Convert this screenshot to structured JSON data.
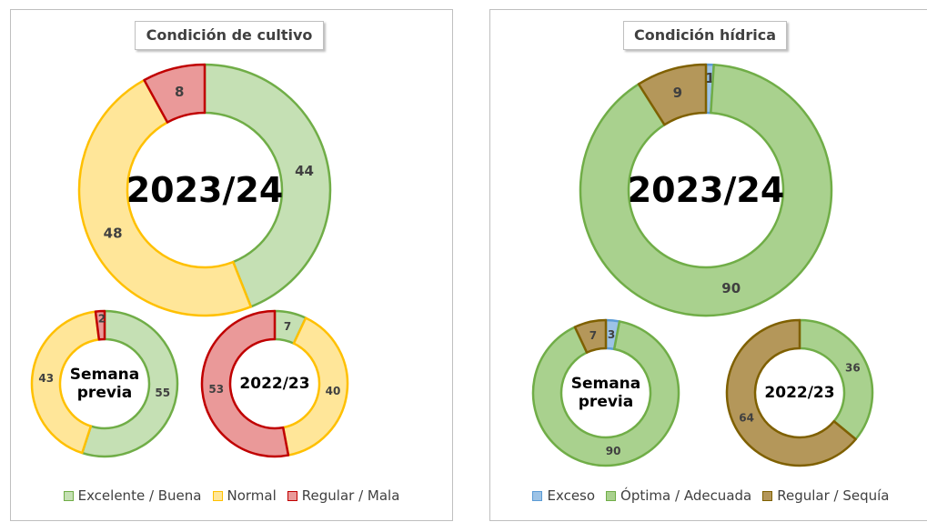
{
  "panels": [
    {
      "title": "Condición  de cultivo",
      "legend": [
        {
          "label": "Excelente / Buena",
          "fill": "#c5e0b4",
          "stroke": "#70ad47"
        },
        {
          "label": "Normal",
          "fill": "#ffe699",
          "stroke": "#ffc000"
        },
        {
          "label": "Regular / Mala",
          "fill": "#ea9999",
          "stroke": "#c00000"
        }
      ]
    },
    {
      "title": "Condición  hídrica",
      "legend": [
        {
          "label": "Exceso",
          "fill": "#9dc3e6",
          "stroke": "#5b9bd5"
        },
        {
          "label": "Óptima / Adecuada",
          "fill": "#a9d18e",
          "stroke": "#70ad47"
        },
        {
          "label": "Regular / Sequía",
          "fill": "#b4975a",
          "stroke": "#7f6000"
        }
      ]
    }
  ],
  "chart_data": [
    {
      "type": "pie",
      "panel": "Condición  de cultivo",
      "center_label": "2023/24",
      "categories": [
        "Excelente / Buena",
        "Normal",
        "Regular / Mala"
      ],
      "values": [
        44,
        48,
        8
      ]
    },
    {
      "type": "pie",
      "panel": "Condición  de cultivo",
      "center_label": "Semana previa",
      "categories": [
        "Excelente / Buena",
        "Normal",
        "Regular / Mala"
      ],
      "values": [
        55,
        43,
        2
      ]
    },
    {
      "type": "pie",
      "panel": "Condición  de cultivo",
      "center_label": "2022/23",
      "categories": [
        "Excelente / Buena",
        "Normal",
        "Regular / Mala"
      ],
      "values": [
        7,
        40,
        53
      ]
    },
    {
      "type": "pie",
      "panel": "Condición  hídrica",
      "center_label": "2023/24",
      "categories": [
        "Exceso",
        "Óptima / Adecuada",
        "Regular / Sequía"
      ],
      "values": [
        1,
        90,
        9
      ]
    },
    {
      "type": "pie",
      "panel": "Condición  hídrica",
      "center_label": "Semana previa",
      "categories": [
        "Exceso",
        "Óptima / Adecuada",
        "Regular / Sequía"
      ],
      "values": [
        3,
        90,
        7
      ]
    },
    {
      "type": "pie",
      "panel": "Condición  hídrica",
      "center_label": "2022/23",
      "categories": [
        "Exceso",
        "Óptima / Adecuada",
        "Regular / Sequía"
      ],
      "values": [
        0,
        36,
        64
      ]
    }
  ]
}
